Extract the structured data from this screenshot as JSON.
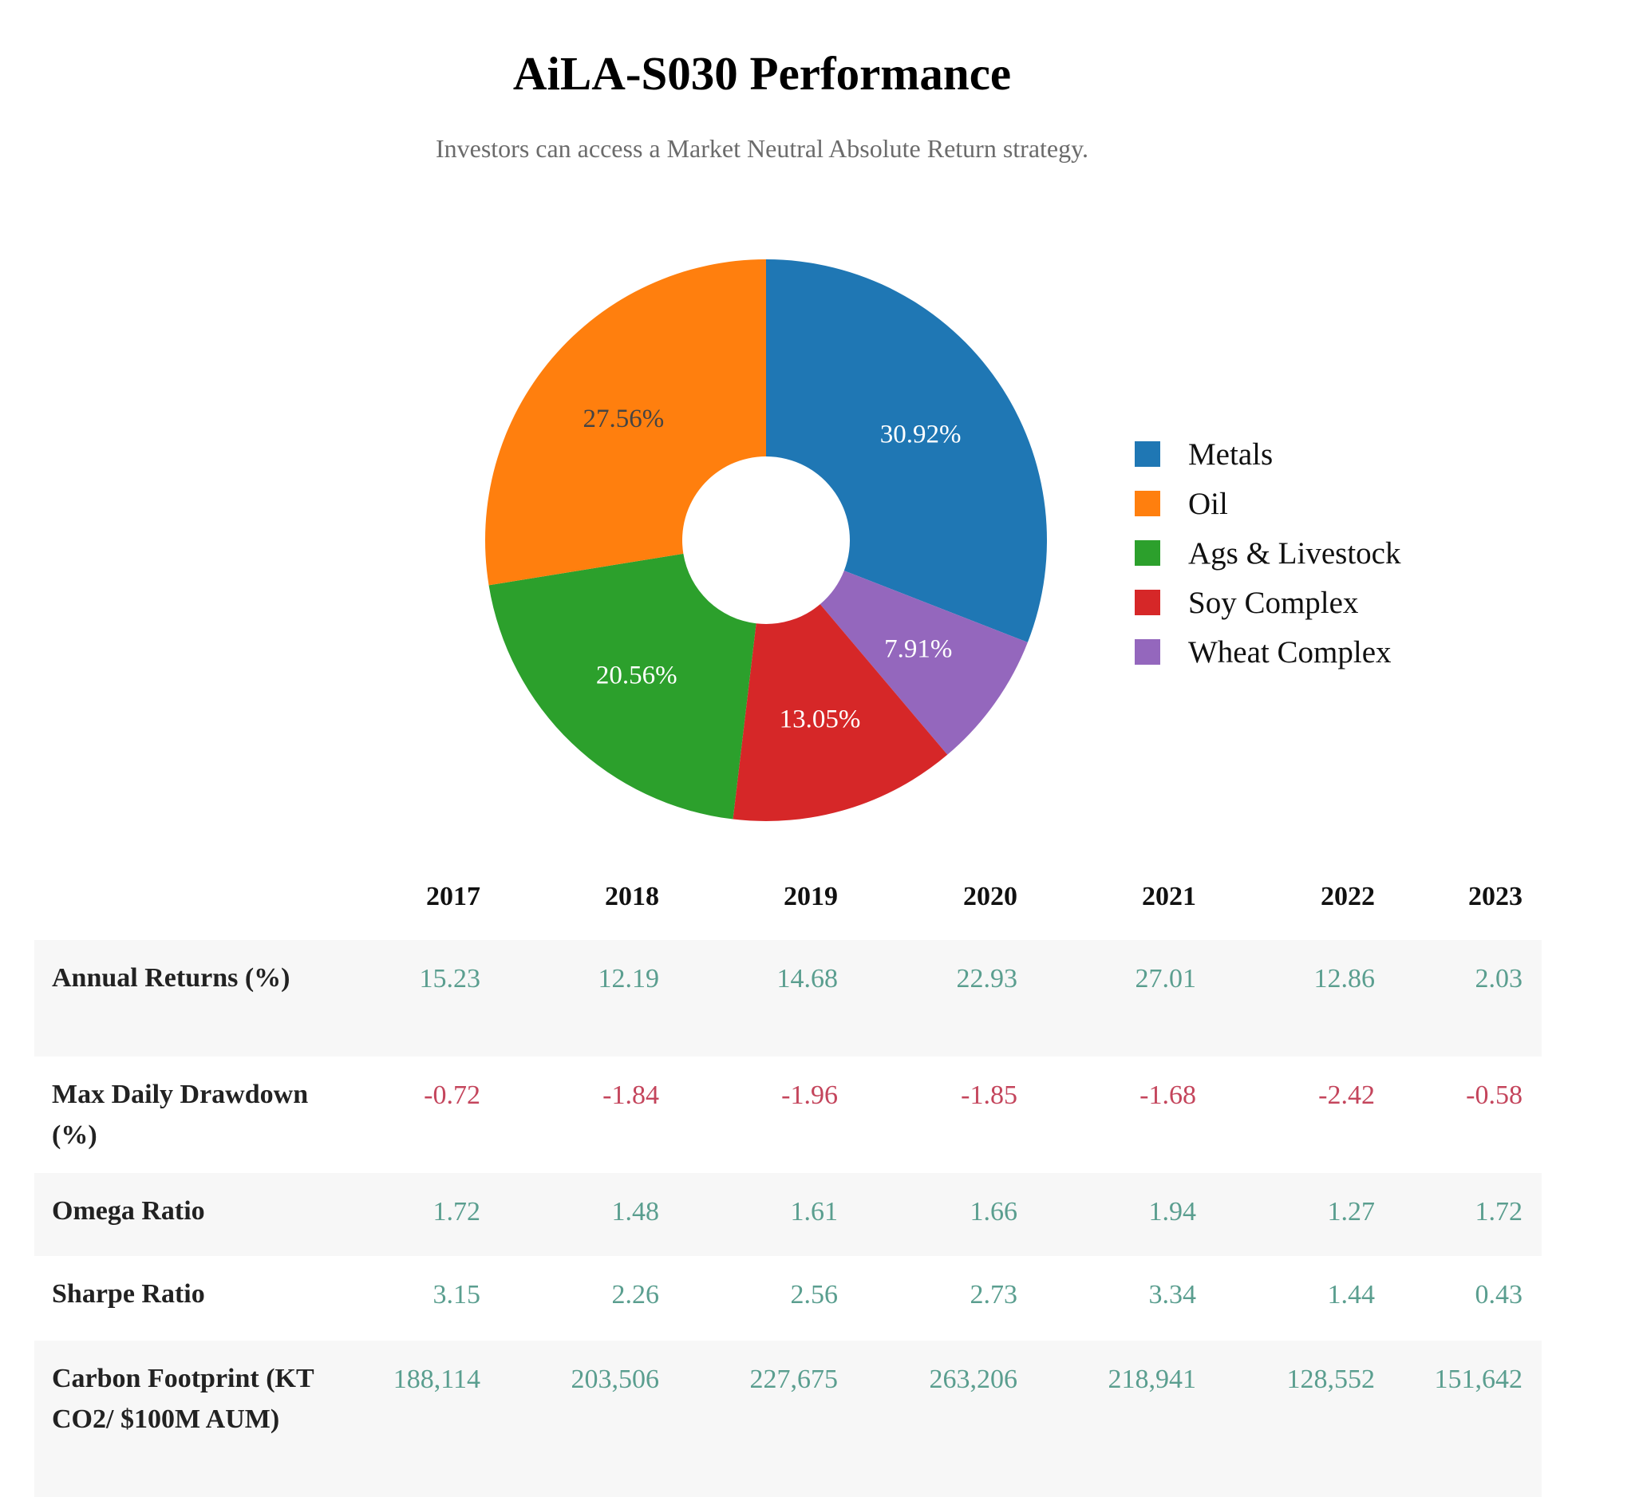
{
  "header": {
    "title": "AiLA-S030 Performance",
    "subtitle": "Investors can access a Market Neutral Absolute Return strategy."
  },
  "chart_data": {
    "type": "pie",
    "donut": true,
    "legend_position": "right",
    "slices": [
      {
        "label": "Metals",
        "value": 30.92,
        "display": "30.92%",
        "color": "#1f77b4",
        "text_color": "#ffffff"
      },
      {
        "label": "Wheat Complex",
        "value": 7.91,
        "display": "7.91%",
        "color": "#9467bd",
        "text_color": "#ffffff"
      },
      {
        "label": "Soy Complex",
        "value": 13.05,
        "display": "13.05%",
        "color": "#d62728",
        "text_color": "#ffffff"
      },
      {
        "label": "Ags & Livestock",
        "value": 20.56,
        "display": "20.56%",
        "color": "#2ca02c",
        "text_color": "#ffffff"
      },
      {
        "label": "Oil",
        "value": 27.56,
        "display": "27.56%",
        "color": "#ff7f0e",
        "text_color": "#444444"
      }
    ],
    "legend": [
      {
        "label": "Metals",
        "color": "#1f77b4"
      },
      {
        "label": "Oil",
        "color": "#ff7f0e"
      },
      {
        "label": "Ags & Livestock",
        "color": "#2ca02c"
      },
      {
        "label": "Soy Complex",
        "color": "#d62728"
      },
      {
        "label": "Wheat Complex",
        "color": "#9467bd"
      }
    ]
  },
  "table": {
    "years": [
      "2017",
      "2018",
      "2019",
      "2020",
      "2021",
      "2022",
      "2023"
    ],
    "rows": [
      {
        "label": "Annual Returns (%)",
        "tone": "pos",
        "values": [
          "15.23",
          "12.19",
          "14.68",
          "22.93",
          "27.01",
          "12.86",
          "2.03"
        ]
      },
      {
        "label": "Max Daily Drawdown (%)",
        "tone": "neg",
        "values": [
          "-0.72",
          "-1.84",
          "-1.96",
          "-1.85",
          "-1.68",
          "-2.42",
          "-0.58"
        ]
      },
      {
        "label": "Omega Ratio",
        "tone": "pos",
        "values": [
          "1.72",
          "1.48",
          "1.61",
          "1.66",
          "1.94",
          "1.27",
          "1.72"
        ]
      },
      {
        "label": "Sharpe Ratio",
        "tone": "pos",
        "values": [
          "3.15",
          "2.26",
          "2.56",
          "2.73",
          "3.34",
          "1.44",
          "0.43"
        ]
      },
      {
        "label": "Carbon Footprint (KT CO2/ $100M AUM)",
        "tone": "pos",
        "values": [
          "188,114",
          "203,506",
          "227,675",
          "263,206",
          "218,941",
          "128,552",
          "151,642"
        ]
      }
    ]
  }
}
